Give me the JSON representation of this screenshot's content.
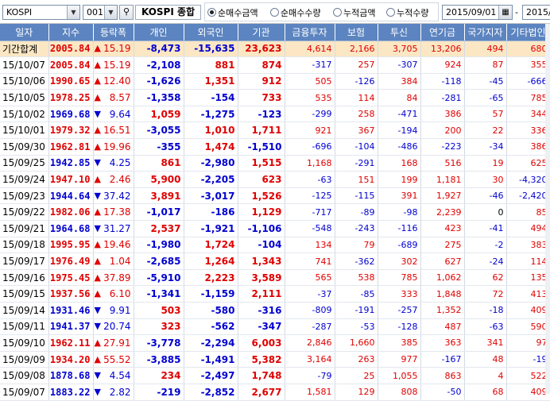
{
  "toolbar": {
    "market": "KOSPI",
    "code": "001",
    "name": "KOSPI 종합",
    "radios": [
      {
        "label": "순매수금액",
        "checked": true
      },
      {
        "label": "순매수수량",
        "checked": false
      },
      {
        "label": "누적금액",
        "checked": false
      },
      {
        "label": "누적수량",
        "checked": false
      }
    ],
    "date_from": "2015/09/01",
    "date_sep": "-",
    "date_to": "2015/"
  },
  "columns": [
    "일자",
    "지수",
    "등락폭",
    "개인",
    "외국인",
    "기관",
    "금융투자",
    "보험",
    "투신",
    "연기금",
    "국가지자",
    "기타법인"
  ],
  "rows": [
    {
      "date": "기간합계",
      "index": "2005.84",
      "dir": "up",
      "chg": "15.19",
      "ind": "-8,473",
      "frn": "-15,635",
      "inst": "23,623",
      "fin": "4,614",
      "ins": "2,166",
      "trust": "3,705",
      "pen": "13,206",
      "gov": "494",
      "etc": "680"
    },
    {
      "date": "15/10/07",
      "index": "2005.84",
      "dir": "up",
      "chg": "15.19",
      "ind": "-2,108",
      "frn": "881",
      "inst": "874",
      "fin": "-317",
      "ins": "257",
      "trust": "-307",
      "pen": "924",
      "gov": "87",
      "etc": "355"
    },
    {
      "date": "15/10/06",
      "index": "1990.65",
      "dir": "up",
      "chg": "12.40",
      "ind": "-1,626",
      "frn": "1,351",
      "inst": "912",
      "fin": "505",
      "ins": "-126",
      "trust": "384",
      "pen": "-118",
      "gov": "-45",
      "etc": "-666"
    },
    {
      "date": "15/10/05",
      "index": "1978.25",
      "dir": "up",
      "chg": "8.57",
      "ind": "-1,358",
      "frn": "-154",
      "inst": "733",
      "fin": "535",
      "ins": "114",
      "trust": "84",
      "pen": "-281",
      "gov": "-65",
      "etc": "785"
    },
    {
      "date": "15/10/02",
      "index": "1969.68",
      "dir": "down",
      "chg": "9.64",
      "ind": "1,059",
      "frn": "-1,275",
      "inst": "-123",
      "fin": "-299",
      "ins": "258",
      "trust": "-471",
      "pen": "386",
      "gov": "57",
      "etc": "344"
    },
    {
      "date": "15/10/01",
      "index": "1979.32",
      "dir": "up",
      "chg": "16.51",
      "ind": "-3,055",
      "frn": "1,010",
      "inst": "1,711",
      "fin": "921",
      "ins": "367",
      "trust": "-194",
      "pen": "200",
      "gov": "22",
      "etc": "336"
    },
    {
      "date": "15/09/30",
      "index": "1962.81",
      "dir": "up",
      "chg": "19.96",
      "ind": "-355",
      "frn": "1,474",
      "inst": "-1,510",
      "fin": "-696",
      "ins": "-104",
      "trust": "-486",
      "pen": "-223",
      "gov": "-34",
      "etc": "386"
    },
    {
      "date": "15/09/25",
      "index": "1942.85",
      "dir": "down",
      "chg": "4.25",
      "ind": "861",
      "frn": "-2,980",
      "inst": "1,515",
      "fin": "1,168",
      "ins": "-291",
      "trust": "168",
      "pen": "516",
      "gov": "19",
      "etc": "625"
    },
    {
      "date": "15/09/24",
      "index": "1947.10",
      "dir": "up",
      "chg": "2.46",
      "ind": "5,900",
      "frn": "-2,205",
      "inst": "623",
      "fin": "-63",
      "ins": "151",
      "trust": "199",
      "pen": "1,181",
      "gov": "30",
      "etc": "-4,320"
    },
    {
      "date": "15/09/23",
      "index": "1944.64",
      "dir": "down",
      "chg": "37.42",
      "ind": "3,891",
      "frn": "-3,017",
      "inst": "1,526",
      "fin": "-125",
      "ins": "-115",
      "trust": "391",
      "pen": "1,927",
      "gov": "-46",
      "etc": "-2,420"
    },
    {
      "date": "15/09/22",
      "index": "1982.06",
      "dir": "up",
      "chg": "17.38",
      "ind": "-1,017",
      "frn": "-186",
      "inst": "1,129",
      "fin": "-717",
      "ins": "-89",
      "trust": "-98",
      "pen": "2,239",
      "gov": "0",
      "etc": "85"
    },
    {
      "date": "15/09/21",
      "index": "1964.68",
      "dir": "down",
      "chg": "31.27",
      "ind": "2,537",
      "frn": "-1,921",
      "inst": "-1,106",
      "fin": "-548",
      "ins": "-243",
      "trust": "-116",
      "pen": "423",
      "gov": "-41",
      "etc": "494"
    },
    {
      "date": "15/09/18",
      "index": "1995.95",
      "dir": "up",
      "chg": "19.46",
      "ind": "-1,980",
      "frn": "1,724",
      "inst": "-104",
      "fin": "134",
      "ins": "79",
      "trust": "-689",
      "pen": "275",
      "gov": "-2",
      "etc": "383"
    },
    {
      "date": "15/09/17",
      "index": "1976.49",
      "dir": "up",
      "chg": "1.04",
      "ind": "-2,685",
      "frn": "1,264",
      "inst": "1,343",
      "fin": "741",
      "ins": "-362",
      "trust": "302",
      "pen": "627",
      "gov": "-24",
      "etc": "114"
    },
    {
      "date": "15/09/16",
      "index": "1975.45",
      "dir": "up",
      "chg": "37.89",
      "ind": "-5,910",
      "frn": "2,223",
      "inst": "3,589",
      "fin": "565",
      "ins": "538",
      "trust": "785",
      "pen": "1,062",
      "gov": "62",
      "etc": "135"
    },
    {
      "date": "15/09/15",
      "index": "1937.56",
      "dir": "up",
      "chg": "6.10",
      "ind": "-1,341",
      "frn": "-1,159",
      "inst": "2,111",
      "fin": "-37",
      "ins": "-85",
      "trust": "333",
      "pen": "1,848",
      "gov": "72",
      "etc": "413"
    },
    {
      "date": "15/09/14",
      "index": "1931.46",
      "dir": "down",
      "chg": "9.91",
      "ind": "503",
      "frn": "-580",
      "inst": "-316",
      "fin": "-809",
      "ins": "-191",
      "trust": "-257",
      "pen": "1,352",
      "gov": "-18",
      "etc": "409"
    },
    {
      "date": "15/09/11",
      "index": "1941.37",
      "dir": "down",
      "chg": "20.74",
      "ind": "323",
      "frn": "-562",
      "inst": "-347",
      "fin": "-287",
      "ins": "-53",
      "trust": "-128",
      "pen": "487",
      "gov": "-63",
      "etc": "590"
    },
    {
      "date": "15/09/10",
      "index": "1962.11",
      "dir": "up",
      "chg": "27.91",
      "ind": "-3,778",
      "frn": "-2,294",
      "inst": "6,003",
      "fin": "2,846",
      "ins": "1,660",
      "trust": "385",
      "pen": "363",
      "gov": "341",
      "etc": "97"
    },
    {
      "date": "15/09/09",
      "index": "1934.20",
      "dir": "up",
      "chg": "55.52",
      "ind": "-3,885",
      "frn": "-1,491",
      "inst": "5,382",
      "fin": "3,164",
      "ins": "263",
      "trust": "977",
      "pen": "-167",
      "gov": "48",
      "etc": "-19"
    },
    {
      "date": "15/09/08",
      "index": "1878.68",
      "dir": "down",
      "chg": "4.54",
      "ind": "234",
      "frn": "-2,497",
      "inst": "1,748",
      "fin": "-79",
      "ins": "25",
      "trust": "1,055",
      "pen": "863",
      "gov": "4",
      "etc": "522"
    },
    {
      "date": "15/09/07",
      "index": "1883.22",
      "dir": "down",
      "chg": "2.82",
      "ind": "-219",
      "frn": "-2,852",
      "inst": "2,677",
      "fin": "1,581",
      "ins": "129",
      "trust": "808",
      "pen": "-50",
      "gov": "68",
      "etc": "409"
    }
  ],
  "colors": {
    "header_bg": "#5c84c0",
    "up": "#e00000",
    "down": "#0000d0",
    "summary_bg": "#fbe7c4"
  },
  "icons": {
    "up": "▲",
    "down": "▼",
    "search": "search-icon",
    "calendar": "calendar-icon",
    "dropdown": "chevron-down-icon"
  }
}
